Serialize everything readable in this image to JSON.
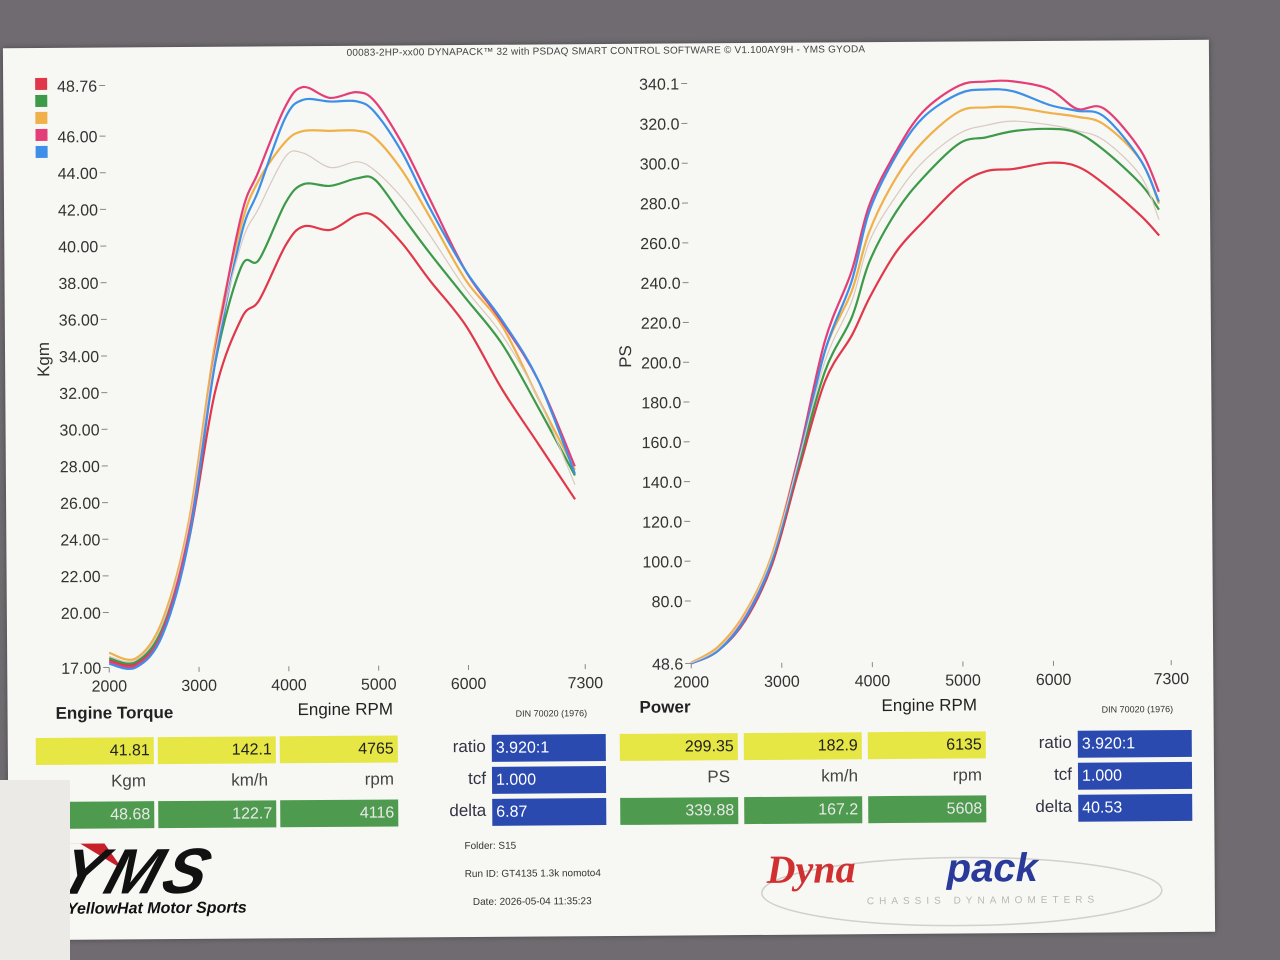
{
  "header": "00083-2HP-xx00 DYNAPACK™ 32 with PSDAQ SMART CONTROL SOFTWARE © V1.100AY9H - YMS GYODA",
  "colors": {
    "red": "#e0384a",
    "green": "#3c9a48",
    "orange": "#f0b04a",
    "pink": "#e43e78",
    "blue": "#3d8fe8",
    "ghost": "#d9c9c0"
  },
  "chart_data": [
    {
      "type": "line",
      "title": "Engine Torque",
      "xlabel": "Engine RPM",
      "ylabel": "Kgm",
      "xlim": [
        2000,
        7300
      ],
      "ylim": [
        17.0,
        48.76
      ],
      "xticks": [
        "2000",
        "3000",
        "4000",
        "5000",
        "6000",
        "7300"
      ],
      "yticks": [
        "48.76",
        "46.00",
        "44.00",
        "42.00",
        "40.00",
        "38.00",
        "36.00",
        "34.00",
        "32.00",
        "30.00",
        "28.00",
        "26.00",
        "24.00",
        "22.00",
        "20.00",
        "17.00"
      ],
      "x": [
        2000,
        2300,
        2600,
        2900,
        3200,
        3500,
        3700,
        4000,
        4200,
        4500,
        4800,
        5000,
        5300,
        5600,
        6000,
        6400,
        6800,
        7200
      ],
      "series": [
        {
          "color": "red",
          "values": [
            17.4,
            17.2,
            19.0,
            24.0,
            32.0,
            36.0,
            37.0,
            40.0,
            41.0,
            40.8,
            41.6,
            41.5,
            40.0,
            38.0,
            35.5,
            32.0,
            29.0,
            26.0
          ]
        },
        {
          "color": "green",
          "values": [
            17.5,
            17.3,
            19.2,
            24.5,
            33.5,
            38.8,
            39.2,
            42.3,
            43.3,
            43.2,
            43.6,
            43.5,
            41.5,
            39.5,
            37.0,
            34.5,
            31.0,
            27.3
          ]
        },
        {
          "color": "orange",
          "values": [
            17.8,
            17.5,
            19.6,
            25.0,
            34.5,
            41.0,
            43.5,
            45.6,
            46.2,
            46.2,
            46.2,
            45.8,
            44.0,
            41.5,
            38.0,
            35.5,
            31.5,
            27.6
          ]
        },
        {
          "color": "pink",
          "values": [
            17.3,
            17.1,
            19.0,
            24.5,
            34.0,
            41.5,
            44.0,
            47.5,
            48.6,
            48.0,
            48.3,
            47.8,
            45.5,
            42.5,
            38.5,
            35.7,
            32.5,
            27.8
          ]
        },
        {
          "color": "blue",
          "values": [
            17.2,
            17.0,
            18.8,
            24.0,
            33.5,
            40.5,
            43.0,
            46.9,
            47.9,
            47.8,
            47.8,
            47.2,
            45.0,
            42.0,
            38.5,
            35.8,
            32.5,
            27.4
          ]
        },
        {
          "color": "ghost",
          "values": [
            17.6,
            17.4,
            19.4,
            24.8,
            34.0,
            40.0,
            42.0,
            44.8,
            45.0,
            44.2,
            44.5,
            44.0,
            42.5,
            40.5,
            37.5,
            35.0,
            31.5,
            26.8
          ]
        }
      ]
    },
    {
      "type": "line",
      "title": "Power",
      "xlabel": "Engine RPM",
      "ylabel": "PS",
      "xlim": [
        2000,
        7300
      ],
      "ylim": [
        48.6,
        340.1
      ],
      "xticks": [
        "2000",
        "3000",
        "4000",
        "5000",
        "6000",
        "7300"
      ],
      "yticks": [
        "340.1",
        "320.0",
        "300.0",
        "280.0",
        "260.0",
        "240.0",
        "220.0",
        "200.0",
        "180.0",
        "160.0",
        "140.0",
        "120.0",
        "100.0",
        "80.0",
        "48.6"
      ],
      "x": [
        2000,
        2300,
        2600,
        2900,
        3200,
        3500,
        3800,
        4000,
        4300,
        4600,
        5000,
        5300,
        5600,
        6000,
        6300,
        6600,
        7000,
        7200
      ],
      "series": [
        {
          "color": "red",
          "values": [
            48.6,
            55,
            70,
            98,
            145,
            190,
            213,
            232,
            255,
            270,
            288,
            295,
            296,
            299,
            297,
            288,
            272,
            262
          ]
        },
        {
          "color": "green",
          "values": [
            48.6,
            56,
            72,
            100,
            148,
            195,
            222,
            250,
            275,
            292,
            309,
            312,
            315,
            316,
            314,
            305,
            288,
            275
          ]
        },
        {
          "color": "orange",
          "values": [
            49.0,
            57,
            74,
            103,
            152,
            205,
            235,
            265,
            292,
            310,
            325,
            327,
            327,
            324,
            322,
            318,
            300,
            278
          ]
        },
        {
          "color": "pink",
          "values": [
            48.6,
            55,
            72,
            101,
            152,
            210,
            245,
            278,
            305,
            325,
            338,
            340,
            340,
            336,
            326,
            326,
            305,
            284
          ]
        },
        {
          "color": "blue",
          "values": [
            48.6,
            55,
            71,
            100,
            150,
            205,
            240,
            275,
            303,
            322,
            334,
            336,
            335,
            328,
            325,
            322,
            300,
            279
          ]
        },
        {
          "color": "ghost",
          "values": [
            48.8,
            56,
            73,
            102,
            150,
            200,
            230,
            260,
            283,
            300,
            314,
            318,
            320,
            318,
            315,
            310,
            292,
            270
          ]
        }
      ]
    }
  ],
  "left_panel": {
    "title": "Engine Torque",
    "xlabel": "Engine RPM",
    "din": "DIN 70020 (1976)",
    "yellow": [
      "41.81",
      "142.1",
      "4765"
    ],
    "units": [
      "Kgm",
      "km/h",
      "rpm"
    ],
    "green": [
      "48.68",
      "122.7",
      "4116"
    ],
    "ratio_label": "ratio",
    "ratio": "3.920:1",
    "tcf_label": "tcf",
    "tcf": "1.000",
    "delta_label": "delta",
    "delta": "6.87"
  },
  "right_panel": {
    "title": "Power",
    "xlabel": "Engine RPM",
    "din": "DIN 70020 (1976)",
    "yellow": [
      "299.35",
      "182.9",
      "6135"
    ],
    "units": [
      "PS",
      "km/h",
      "rpm"
    ],
    "green": [
      "339.88",
      "167.2",
      "5608"
    ],
    "ratio_label": "ratio",
    "ratio": "3.920:1",
    "tcf_label": "tcf",
    "tcf": "1.000",
    "delta_label": "delta",
    "delta": "40.53"
  },
  "meta": {
    "folder": "Folder:  S15",
    "run_id": "Run ID:  GT4135 1.3k nomoto4",
    "date": "Date:  2026-05-04 11:35:23"
  },
  "logos": {
    "yms": "YMS",
    "yms_tagline": "YellowHat Motor Sports",
    "dynapack_red": "Dyna",
    "dynapack_blue": "pack",
    "dynapack_sub": "CHASSIS DYNAMOMETERS"
  }
}
